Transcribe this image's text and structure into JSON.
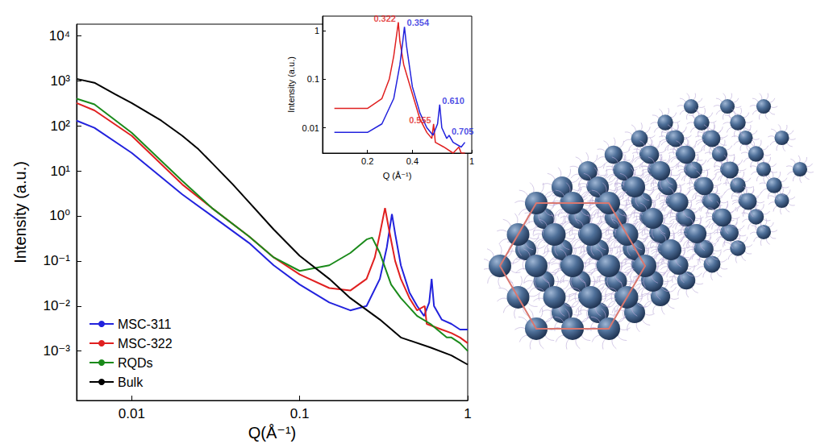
{
  "chart_data": [
    {
      "type": "line",
      "xlabel": "Q(Å⁻¹)",
      "ylabel": "Intensity (a.u.)",
      "log": true,
      "grid": false,
      "legend": "lower left",
      "xlim": [
        0.0047,
        1
      ],
      "xticks": [
        0.01,
        0.1,
        1
      ],
      "ylim": [
        8e-05,
        18000
      ],
      "yticks": [
        {
          "value": 0.001,
          "label": "10⁻³"
        },
        {
          "value": 0.01,
          "label": "10⁻²"
        },
        {
          "value": 0.1,
          "label": "10⁻¹"
        },
        {
          "value": 1,
          "label": "10⁰"
        },
        {
          "value": 10,
          "label": "10¹"
        },
        {
          "value": 100,
          "label": "10²"
        },
        {
          "value": 1000,
          "label": "10³"
        },
        {
          "value": 10000,
          "label": "10⁴"
        }
      ],
      "series": [
        {
          "name": "MSC-311",
          "color": "#2222dd",
          "x": [
            0.0047,
            0.006,
            0.01,
            0.02,
            0.03,
            0.05,
            0.07,
            0.1,
            0.15,
            0.2,
            0.25,
            0.3,
            0.33,
            0.354,
            0.37,
            0.4,
            0.45,
            0.5,
            0.55,
            0.59,
            0.61,
            0.63,
            0.7,
            0.8,
            0.9,
            1.0
          ],
          "values": [
            130,
            90,
            25,
            3,
            1,
            0.25,
            0.08,
            0.03,
            0.012,
            0.008,
            0.01,
            0.04,
            0.2,
            1.1,
            0.4,
            0.08,
            0.02,
            0.01,
            0.006,
            0.012,
            0.04,
            0.01,
            0.005,
            0.004,
            0.003,
            0.003
          ]
        },
        {
          "name": "MSC-322",
          "color": "#e02020",
          "x": [
            0.0047,
            0.006,
            0.01,
            0.02,
            0.03,
            0.05,
            0.07,
            0.1,
            0.15,
            0.2,
            0.25,
            0.28,
            0.3,
            0.322,
            0.34,
            0.37,
            0.4,
            0.45,
            0.5,
            0.555,
            0.57,
            0.7,
            0.8,
            0.9,
            1.0
          ],
          "values": [
            320,
            220,
            60,
            5,
            1.5,
            0.35,
            0.12,
            0.05,
            0.025,
            0.022,
            0.04,
            0.12,
            0.4,
            1.5,
            0.5,
            0.1,
            0.04,
            0.015,
            0.008,
            0.01,
            0.004,
            0.003,
            0.0025,
            0.002,
            0.0015
          ]
        },
        {
          "name": "RQDs",
          "color": "#1a8a1a",
          "x": [
            0.0047,
            0.006,
            0.01,
            0.02,
            0.03,
            0.05,
            0.07,
            0.1,
            0.15,
            0.2,
            0.25,
            0.27,
            0.3,
            0.35,
            0.4,
            0.5,
            0.6,
            0.75,
            0.8,
            0.9,
            1.0
          ],
          "values": [
            400,
            300,
            70,
            6,
            1.5,
            0.35,
            0.12,
            0.06,
            0.08,
            0.15,
            0.3,
            0.33,
            0.15,
            0.03,
            0.015,
            0.006,
            0.004,
            0.002,
            0.002,
            0.0015,
            0.001
          ]
        },
        {
          "name": "Bulk",
          "color": "#000000",
          "x": [
            0.0047,
            0.006,
            0.008,
            0.01,
            0.015,
            0.02,
            0.025,
            0.03,
            0.04,
            0.05,
            0.07,
            0.1,
            0.15,
            0.2,
            0.3,
            0.4,
            0.6,
            0.8,
            1.0
          ],
          "values": [
            1100,
            900,
            500,
            320,
            130,
            60,
            30,
            15,
            5,
            2,
            0.5,
            0.13,
            0.04,
            0.015,
            0.005,
            0.002,
            0.0012,
            0.0008,
            0.0005
          ]
        }
      ]
    },
    {
      "type": "line",
      "xlabel": "Q (Å⁻¹)",
      "ylabel": "Intensity (a.u.)",
      "log": true,
      "grid": false,
      "xlim": [
        0.1,
        1
      ],
      "xticks": [
        0.2,
        0.4,
        1
      ],
      "ylim": [
        0.003,
        2
      ],
      "yticks": [
        0.01,
        0.1,
        1
      ],
      "series": [
        {
          "name": "MSC-322",
          "color": "#e02020",
          "x": [
            0.12,
            0.2,
            0.25,
            0.28,
            0.3,
            0.315,
            0.322,
            0.33,
            0.35,
            0.4,
            0.45,
            0.5,
            0.54,
            0.555,
            0.57,
            0.65,
            0.75,
            0.82,
            0.85,
            0.9
          ],
          "values": [
            0.025,
            0.025,
            0.04,
            0.1,
            0.3,
            0.9,
            1.5,
            0.6,
            0.2,
            0.05,
            0.015,
            0.008,
            0.006,
            0.012,
            0.005,
            0.004,
            0.003,
            0.004,
            0.003,
            0.003
          ]
        },
        {
          "name": "MSC-311",
          "color": "#2222dd",
          "x": [
            0.12,
            0.2,
            0.25,
            0.3,
            0.33,
            0.345,
            0.354,
            0.365,
            0.4,
            0.45,
            0.5,
            0.55,
            0.59,
            0.61,
            0.63,
            0.68,
            0.705,
            0.75,
            0.85,
            0.9
          ],
          "values": [
            0.008,
            0.008,
            0.012,
            0.04,
            0.2,
            0.6,
            1.2,
            0.5,
            0.07,
            0.02,
            0.01,
            0.007,
            0.012,
            0.03,
            0.01,
            0.006,
            0.007,
            0.005,
            0.004,
            0.005
          ]
        }
      ],
      "annotations": [
        {
          "text": "0.322",
          "x": 0.322,
          "y": 1.5,
          "series": "MSC-322"
        },
        {
          "text": "0.354",
          "x": 0.354,
          "y": 1.2,
          "series": "MSC-311"
        },
        {
          "text": "0.555",
          "x": 0.555,
          "y": 0.012,
          "series": "MSC-322"
        },
        {
          "text": "0.610",
          "x": 0.61,
          "y": 0.03,
          "series": "MSC-311"
        },
        {
          "text": "0.705",
          "x": 0.705,
          "y": 0.007,
          "series": "MSC-311"
        }
      ]
    }
  ]
}
